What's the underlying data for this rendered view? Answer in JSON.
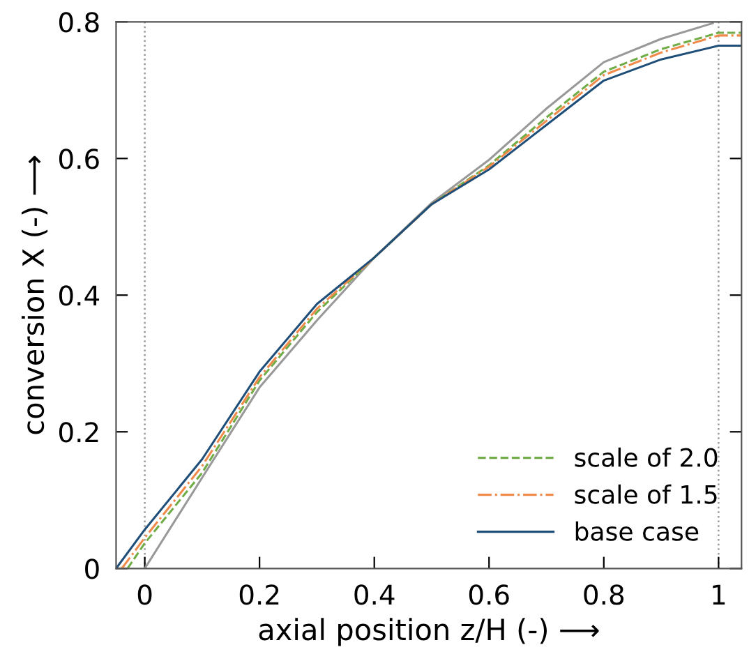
{
  "chart_data": {
    "type": "line",
    "xlabel": "axial position z/H (-) ⟶",
    "ylabel": "conversion X (-) ⟶",
    "xlim": [
      -0.05,
      1.04
    ],
    "ylim": [
      0,
      0.8
    ],
    "xticks": [
      0,
      0.2,
      0.4,
      0.6,
      0.8,
      1
    ],
    "yticks": [
      0,
      0.2,
      0.4,
      0.6,
      0.8
    ],
    "grid": false,
    "legend": "bottom right",
    "ref_lines": [
      {
        "axis": "x",
        "value": 0,
        "color": "#999999",
        "line_style": "dotted"
      },
      {
        "axis": "x",
        "value": 1,
        "color": "#999999",
        "line_style": "dotted"
      }
    ],
    "series": [
      {
        "color": "#999999",
        "line_style": "solid",
        "x": [
          0,
          0.1,
          0.2,
          0.3,
          0.4,
          0.5,
          0.6,
          0.7,
          0.8,
          0.9,
          0.99
        ],
        "values": [
          0,
          0.133,
          0.265,
          0.363,
          0.455,
          0.535,
          0.598,
          0.673,
          0.741,
          0.775,
          0.798
        ]
      },
      {
        "name": "scale of 2.0",
        "color": "#70ad47",
        "line_style": "dashed",
        "x": [
          -0.03,
          0,
          0.1,
          0.2,
          0.3,
          0.4,
          0.5,
          0.6,
          0.7,
          0.8,
          0.9,
          1,
          1.04
        ],
        "values": [
          0,
          0.037,
          0.14,
          0.275,
          0.375,
          0.455,
          0.533,
          0.59,
          0.66,
          0.727,
          0.76,
          0.784,
          0.784
        ]
      },
      {
        "name": "scale of 1.5",
        "color": "#f08a4b",
        "line_style": "dashdot",
        "x": [
          -0.04,
          0,
          0.1,
          0.2,
          0.3,
          0.4,
          0.5,
          0.6,
          0.7,
          0.8,
          0.9,
          1,
          1.04
        ],
        "values": [
          0,
          0.045,
          0.15,
          0.28,
          0.38,
          0.455,
          0.533,
          0.588,
          0.655,
          0.722,
          0.755,
          0.78,
          0.78
        ]
      },
      {
        "name": "base case",
        "color": "#1f4e79",
        "line_style": "solid",
        "x": [
          -0.05,
          0,
          0.1,
          0.2,
          0.3,
          0.4,
          0.5,
          0.6,
          0.7,
          0.8,
          0.9,
          1,
          1.04
        ],
        "values": [
          0,
          0.057,
          0.16,
          0.288,
          0.387,
          0.455,
          0.533,
          0.584,
          0.649,
          0.714,
          0.745,
          0.765,
          0.765
        ]
      }
    ]
  }
}
